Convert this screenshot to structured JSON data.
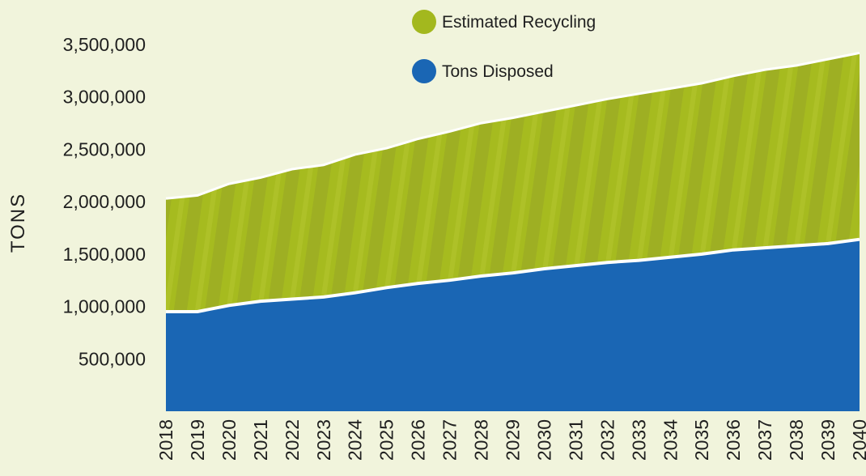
{
  "chart_data": {
    "type": "area",
    "stacked": true,
    "x": [
      "2018",
      "2019",
      "2020",
      "2021",
      "2022",
      "2023",
      "2024",
      "2025",
      "2026",
      "2027",
      "2028",
      "2029",
      "2030",
      "2031",
      "2032",
      "2033",
      "2034",
      "2035",
      "2036",
      "2037",
      "2038",
      "2039",
      "2040"
    ],
    "series": [
      {
        "name": "Tons Disposed",
        "color": "#1a66b4",
        "values": [
          950000,
          950000,
          1010000,
          1050000,
          1070000,
          1090000,
          1130000,
          1180000,
          1220000,
          1250000,
          1290000,
          1320000,
          1360000,
          1390000,
          1420000,
          1440000,
          1470000,
          1500000,
          1540000,
          1560000,
          1580000,
          1600000,
          1640000
        ]
      },
      {
        "name": "Estimated Recycling",
        "color": "#a3b81e",
        "values": [
          1080000,
          1110000,
          1160000,
          1180000,
          1240000,
          1260000,
          1320000,
          1330000,
          1380000,
          1420000,
          1460000,
          1480000,
          1500000,
          1530000,
          1560000,
          1590000,
          1610000,
          1630000,
          1660000,
          1700000,
          1720000,
          1760000,
          1780000
        ]
      }
    ],
    "ylabel": "TONS",
    "ylim": [
      0,
      3500000
    ],
    "yticks": [
      "500,000",
      "1,000,000",
      "1,500,000",
      "2,000,000",
      "2,500,000",
      "3,000,000",
      "3,500,000"
    ],
    "ytick_values": [
      500000,
      1000000,
      1500000,
      2000000,
      2500000,
      3000000,
      3500000
    ],
    "grid": false,
    "legend_position": "top"
  }
}
